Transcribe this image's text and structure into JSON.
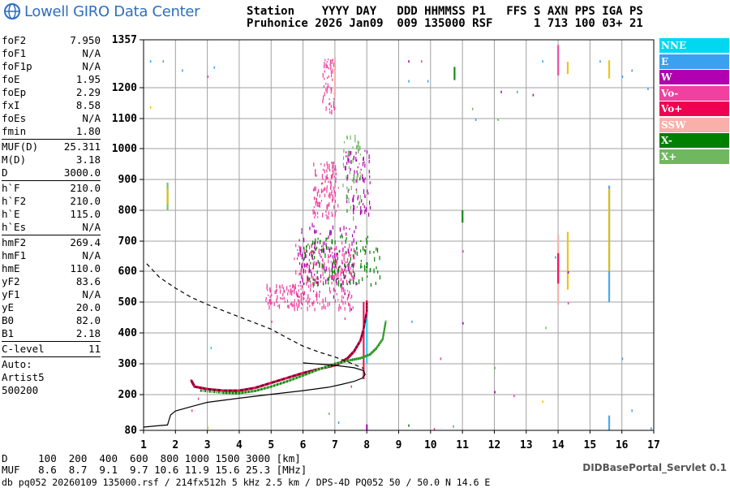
{
  "header": {
    "logo_text": "Lowell GIRO Data Center",
    "line1": "Station    YYYY DAY   DDD HHMMSS P1   FFS S AXN PPS IGA PS",
    "line2": "Pruhonice 2026 Jan09  009 135000 RSF      1 713 100 03+ 21"
  },
  "params": {
    "group1": [
      {
        "label": "foF2",
        "value": "7.950"
      },
      {
        "label": "foF1",
        "value": "N/A"
      },
      {
        "label": "foF1p",
        "value": "N/A"
      },
      {
        "label": "foE",
        "value": "1.95"
      },
      {
        "label": "foEp",
        "value": "2.29"
      },
      {
        "label": "fxI",
        "value": "8.58"
      },
      {
        "label": "foEs",
        "value": "N/A"
      },
      {
        "label": "fmin",
        "value": "1.80"
      }
    ],
    "group2": [
      {
        "label": "MUF(D)",
        "value": "25.311"
      },
      {
        "label": "M(D)",
        "value": "3.18"
      },
      {
        "label": "D",
        "value": "3000.0"
      }
    ],
    "group3": [
      {
        "label": "h`F",
        "value": "210.0"
      },
      {
        "label": "h`F2",
        "value": "210.0"
      },
      {
        "label": "h`E",
        "value": "115.0"
      },
      {
        "label": "h`Es",
        "value": "N/A"
      }
    ],
    "group4": [
      {
        "label": "hmF2",
        "value": "269.4"
      },
      {
        "label": "hmF1",
        "value": "N/A"
      },
      {
        "label": "hmE",
        "value": "110.0"
      },
      {
        "label": "yF2",
        "value": "83.6"
      },
      {
        "label": "yF1",
        "value": "N/A"
      },
      {
        "label": "yE",
        "value": "20.0"
      },
      {
        "label": "B0",
        "value": "82.0"
      },
      {
        "label": "B1",
        "value": "2.18"
      }
    ],
    "group5": [
      {
        "label": "C-level",
        "value": "11"
      }
    ],
    "auto": [
      "Auto:",
      "Artist5",
      "500200"
    ]
  },
  "legend": [
    {
      "label": "NNE",
      "color": "#00d8f0"
    },
    {
      "label": "E",
      "color": "#3aa0f0"
    },
    {
      "label": "W",
      "color": "#b000b0"
    },
    {
      "label": "Vo-",
      "color": "#f040a0"
    },
    {
      "label": "Vo+",
      "color": "#f00050"
    },
    {
      "label": "SSW",
      "color": "#f8b0a8"
    },
    {
      "label": "X-",
      "color": "#008000"
    },
    {
      "label": "X+",
      "color": "#70b860"
    }
  ],
  "bottom": {
    "d_line": "D     100  200  400  600  800 1000 1500 3000 [km]",
    "muf_line": "MUF   8.6  8.7  9.1  9.7 10.6 11.9 15.6 25.3 [MHz]",
    "footer": "db pq052 20260109 135000.rsf / 214fx512h 5 kHz 2.5 km / DPS-4D PQ052 50 / 50.0 N 14.6 E",
    "servlet": "DIDBasePortal_Servlet 0.1"
  },
  "chart_data": {
    "type": "scatter",
    "xlim": [
      1,
      17
    ],
    "ylim": [
      80,
      1357
    ],
    "x_ticks": [
      1,
      2,
      3,
      4,
      5,
      6,
      7,
      8,
      9,
      10,
      11,
      12,
      13,
      14,
      15,
      16,
      17
    ],
    "y_ticks": [
      80,
      200,
      300,
      400,
      500,
      600,
      700,
      800,
      900,
      1000,
      1100,
      1200,
      1357
    ],
    "y_tick_labels": [
      "80",
      "200",
      "300",
      "400",
      "500",
      "600",
      "700",
      "800",
      "900",
      "1000",
      "1100",
      "1200",
      "1357"
    ],
    "grid": true,
    "profile_solid": [
      [
        1,
        91
      ],
      [
        1.5,
        96
      ],
      [
        1.75,
        98
      ],
      [
        1.8,
        115
      ],
      [
        1.85,
        132
      ],
      [
        2,
        145
      ],
      [
        2.5,
        160
      ],
      [
        3,
        174
      ],
      [
        4,
        188
      ],
      [
        5,
        201
      ],
      [
        6,
        213
      ],
      [
        6.8,
        224
      ],
      [
        7.2,
        233
      ],
      [
        7.6,
        243
      ],
      [
        7.85,
        253
      ],
      [
        7.95,
        265
      ],
      [
        7.9,
        278
      ],
      [
        7.6,
        287
      ],
      [
        7.0,
        295
      ],
      [
        6.0,
        303
      ]
    ],
    "profile_dashed": [
      [
        1.1,
        625
      ],
      [
        1.5,
        580
      ],
      [
        2,
        545
      ],
      [
        2.5,
        515
      ],
      [
        3,
        492
      ],
      [
        4,
        452
      ],
      [
        5,
        412
      ],
      [
        5.5,
        384
      ],
      [
        6,
        357
      ],
      [
        6.5,
        338
      ],
      [
        7,
        322
      ],
      [
        7.5,
        302
      ],
      [
        7.9,
        285
      ]
    ],
    "trace_Opos": [
      [
        2.5,
        245
      ],
      [
        2.6,
        226
      ],
      [
        3,
        218
      ],
      [
        3.5,
        213
      ],
      [
        4,
        213
      ],
      [
        4.5,
        222
      ],
      [
        5,
        238
      ],
      [
        5.5,
        254
      ],
      [
        6,
        270
      ],
      [
        6.5,
        283
      ],
      [
        7,
        295
      ],
      [
        7.2,
        305
      ],
      [
        7.4,
        318
      ],
      [
        7.6,
        340
      ],
      [
        7.8,
        375
      ],
      [
        7.9,
        412
      ],
      [
        8,
        470
      ],
      [
        8,
        505
      ]
    ],
    "trace_X": [
      [
        2.8,
        213
      ],
      [
        3.5,
        206
      ],
      [
        4,
        205
      ],
      [
        4.5,
        212
      ],
      [
        5,
        226
      ],
      [
        5.5,
        243
      ],
      [
        6,
        262
      ],
      [
        6.5,
        282
      ],
      [
        7,
        300
      ],
      [
        7.5,
        312
      ],
      [
        7.8,
        318
      ],
      [
        8.1,
        330
      ],
      [
        8.3,
        350
      ],
      [
        8.5,
        380
      ],
      [
        8.55,
        410
      ],
      [
        8.6,
        440
      ]
    ],
    "rays": [
      {
        "x": 7.9,
        "y0": 250,
        "y1": 500,
        "color": "#f00050"
      },
      {
        "x": 8.0,
        "y0": 300,
        "y1": 500,
        "color": "#00d8f0"
      },
      {
        "x": 14.0,
        "y0": 490,
        "y1": 720,
        "color": "#f8b0a8"
      },
      {
        "x": 14.0,
        "y0": 560,
        "y1": 660,
        "color": "#f00050"
      },
      {
        "x": 15.6,
        "y0": 500,
        "y1": 880,
        "color": "#3aa0f0"
      },
      {
        "x": 15.6,
        "y0": 600,
        "y1": 870,
        "color": "#e8c000"
      },
      {
        "x": 14.3,
        "y0": 540,
        "y1": 730,
        "color": "#e8c000"
      },
      {
        "x": 1.75,
        "y0": 800,
        "y1": 890,
        "color": "#70b860"
      },
      {
        "x": 1.75,
        "y0": 820,
        "y1": 870,
        "color": "#e8c000"
      },
      {
        "x": 10.75,
        "y0": 1225,
        "y1": 1268,
        "color": "#008000"
      },
      {
        "x": 14.0,
        "y0": 1240,
        "y1": 1340,
        "color": "#f040a0"
      },
      {
        "x": 14.3,
        "y0": 1245,
        "y1": 1285,
        "color": "#e8c000"
      },
      {
        "x": 15.6,
        "y0": 1230,
        "y1": 1290,
        "color": "#e8c000"
      },
      {
        "x": 8.0,
        "y0": 80,
        "y1": 100,
        "color": "#b000b0"
      },
      {
        "x": 15.6,
        "y0": 80,
        "y1": 130,
        "color": "#3aa0f0"
      },
      {
        "x": 11.0,
        "y0": 760,
        "y1": 800,
        "color": "#008000"
      },
      {
        "x": 7.0,
        "y0": 1170,
        "y1": 1300,
        "color": "#f8b0a8"
      }
    ],
    "clouds": [
      {
        "x0": 5.7,
        "x1": 7.6,
        "y0": 480,
        "y1": 700,
        "color": "#f040a0",
        "n": 260
      },
      {
        "x0": 5.8,
        "x1": 7.7,
        "y0": 520,
        "y1": 760,
        "color": "#b000b0",
        "n": 120
      },
      {
        "x0": 6.0,
        "x1": 8.4,
        "y0": 560,
        "y1": 720,
        "color": "#008000",
        "n": 140
      },
      {
        "x0": 4.8,
        "x1": 6.0,
        "y0": 490,
        "y1": 560,
        "color": "#f040a0",
        "n": 80
      },
      {
        "x0": 6.3,
        "x1": 7.1,
        "y0": 780,
        "y1": 960,
        "color": "#f040a0",
        "n": 120
      },
      {
        "x0": 7.3,
        "x1": 8.1,
        "y0": 790,
        "y1": 1000,
        "color": "#b000b0",
        "n": 80
      },
      {
        "x0": 7.2,
        "x1": 7.8,
        "y0": 780,
        "y1": 1050,
        "color": "#70b860",
        "n": 60
      },
      {
        "x0": 6.6,
        "x1": 7.0,
        "y0": 1120,
        "y1": 1300,
        "color": "#f040a0",
        "n": 60
      }
    ],
    "specks": [
      [
        1.6,
        1290,
        "#3aa0f0"
      ],
      [
        1.2,
        1290,
        "#3aa0f0"
      ],
      [
        2.2,
        1260,
        "#3aa0f0"
      ],
      [
        3.2,
        1270,
        "#3aa0f0"
      ],
      [
        3.0,
        1240,
        "#f040a0"
      ],
      [
        9.3,
        1290,
        "#b000b0"
      ],
      [
        9.7,
        1290,
        "#f040a0"
      ],
      [
        9.3,
        1225,
        "#3aa0f0"
      ],
      [
        9.9,
        1225,
        "#3aa0f0"
      ],
      [
        12.2,
        1190,
        "#b000b0"
      ],
      [
        12.7,
        1190,
        "#3aa0f0"
      ],
      [
        13.2,
        1180,
        "#b000b0"
      ],
      [
        13.5,
        1290,
        "#3aa0f0"
      ],
      [
        15.3,
        1290,
        "#3aa0f0"
      ],
      [
        16.0,
        1240,
        "#3aa0f0"
      ],
      [
        16.3,
        1260,
        "#3aa0f0"
      ],
      [
        16.8,
        1200,
        "#3aa0f0"
      ],
      [
        11.3,
        1135,
        "#70b860"
      ],
      [
        11.4,
        1100,
        "#3aa0f0"
      ],
      [
        12.1,
        1100,
        "#70b860"
      ],
      [
        1.2,
        1140,
        "#e8c000"
      ],
      [
        11.0,
        670,
        "#f040a0"
      ],
      [
        13.6,
        420,
        "#70b860"
      ],
      [
        11.0,
        435,
        "#b000b0"
      ],
      [
        9.4,
        440,
        "#3aa0f0"
      ],
      [
        10.3,
        320,
        "#f040a0"
      ],
      [
        16.0,
        320,
        "#3aa0f0"
      ],
      [
        12.0,
        290,
        "#70b860"
      ],
      [
        12.0,
        212,
        "#b000b0"
      ],
      [
        12.6,
        200,
        "#f040a0"
      ],
      [
        13.5,
        180,
        "#e8c000"
      ],
      [
        16.3,
        150,
        "#3aa0f0"
      ],
      [
        16.9,
        90,
        "#3aa0f0"
      ],
      [
        9.3,
        100,
        "#008000"
      ],
      [
        10.7,
        97,
        "#3aa0f0"
      ],
      [
        10.1,
        88,
        "#f040a0"
      ],
      [
        3.0,
        93,
        "#e8c000"
      ],
      [
        3.1,
        355,
        "#00d8f0"
      ],
      [
        7.5,
        480,
        "#b000b0"
      ],
      [
        7.3,
        450,
        "#f040a0"
      ],
      [
        5.0,
        440,
        "#f040a0"
      ],
      [
        2.5,
        150,
        "#f040a0"
      ],
      [
        2.7,
        190,
        "#f040a0"
      ],
      [
        7.1,
        110,
        "#3aa0f0"
      ],
      [
        7.5,
        230,
        "#f040a0"
      ],
      [
        6.8,
        140,
        "#70b860"
      ],
      [
        14.3,
        600,
        "#b000b0"
      ],
      [
        14.3,
        500,
        "#f040a0"
      ],
      [
        13.9,
        650,
        "#3aa0f0"
      ]
    ]
  }
}
